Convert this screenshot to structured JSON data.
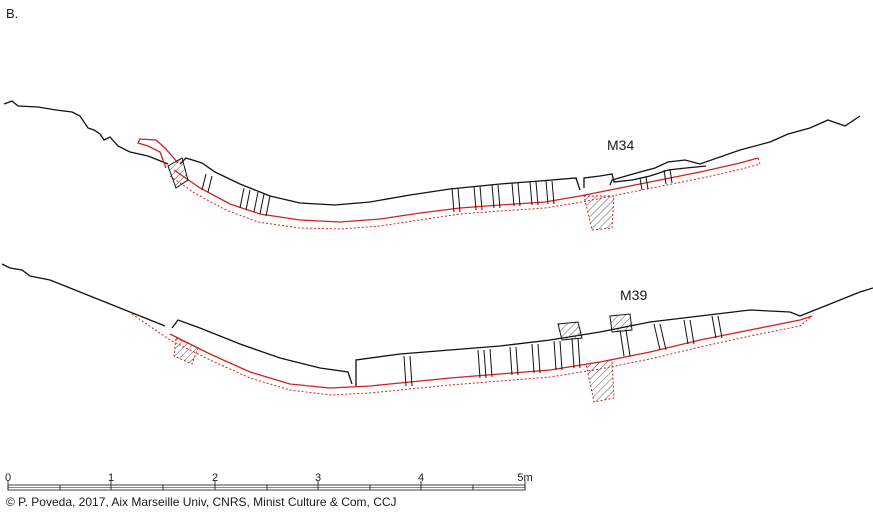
{
  "panel_label": "B.",
  "sections": [
    {
      "label": "M34"
    },
    {
      "label": "M39"
    }
  ],
  "scale_bar": {
    "ticks": [
      "0",
      "1",
      "2",
      "3",
      "4",
      "5m"
    ]
  },
  "credit": "© P. Poveda, 2017, Aix Marseille Univ, CNRS, Minist Culture & Com, CCJ",
  "colors": {
    "outline": "#111111",
    "hull": "#d42020",
    "hatch": "#555555"
  }
}
